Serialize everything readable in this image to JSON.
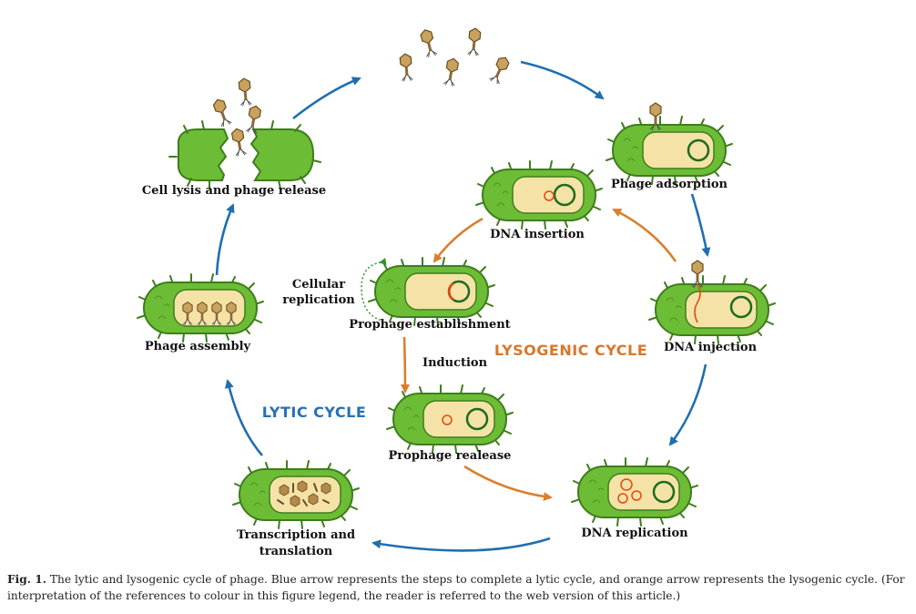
{
  "labels": {
    "phage_adsorption": "Phage adsorption",
    "dna_injection": "DNA injection",
    "dna_replication": "DNA replication",
    "transcription_1": "Transcription and",
    "transcription_2": "translation",
    "phage_assembly": "Phage assembly",
    "cell_lysis": "Cell lysis and phage release",
    "dna_insertion": "DNA insertion",
    "cellular_1": "Cellular",
    "cellular_2": "replication",
    "prophage_establishment": "Prophage establishment",
    "induction": "Induction",
    "prophage_release": "Prophage realease",
    "lysogenic_cycle": "LYSOGENIC CYCLE",
    "lytic_cycle": "LYTIC CYCLE"
  },
  "caption": {
    "fig_label": "Fig. 1.",
    "text": "The lytic and lysogenic cycle of phage. Blue arrow represents the steps to complete a lytic cycle, and orange arrow represents the lysogenic cycle. (For interpretation of the references to colour in this figure legend, the reader is referred to the web version of this article.)"
  },
  "colors": {
    "lytic_arrow": "#1f6fb0",
    "lysogenic_arrow": "#d97f2e",
    "bacteria_body": "#6cbd35",
    "bacteria_inner": "#f4e2a6",
    "dna_ring": "#1e6b1e",
    "phage_dna": "#e04a12",
    "lytic_text": "#2571b5",
    "lysogenic_text": "#d8772a"
  }
}
